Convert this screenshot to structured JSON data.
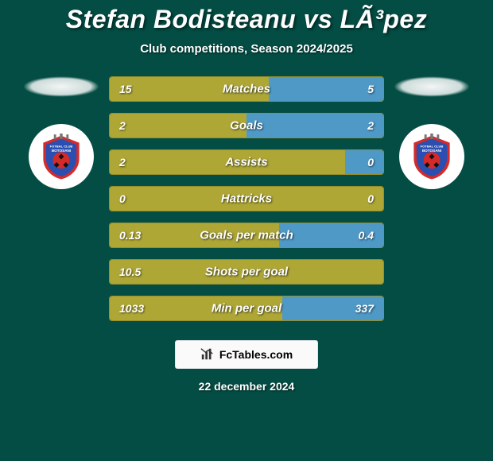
{
  "page": {
    "background": "#044d44",
    "accent_light": "#aea736",
    "border_color": "#968f2a",
    "bar_blue": "#4f99c6",
    "text_color": "#ffffff"
  },
  "title": "Stefan Bodisteanu vs LÃ³pez",
  "subtitle": "Club competitions, Season 2024/2025",
  "date": "22 december 2024",
  "branding": {
    "text": "FcTables.com"
  },
  "club_badge": {
    "shield_fill": "#2b4fb0",
    "shield_stroke": "#d42a2a",
    "ball_fill": "#d42a2a",
    "top_text": "FOTBAL CLUB",
    "name_text": "BOTOSANI"
  },
  "stats": [
    {
      "label": "Matches",
      "left_val": "15",
      "right_val": "5",
      "left_bar_pct": 58,
      "right_bar_pct": 42,
      "right_bar_blue": true
    },
    {
      "label": "Goals",
      "left_val": "2",
      "right_val": "2",
      "left_bar_pct": 50,
      "right_bar_pct": 50,
      "right_bar_blue": true
    },
    {
      "label": "Assists",
      "left_val": "2",
      "right_val": "0",
      "left_bar_pct": 86,
      "right_bar_pct": 14,
      "right_bar_blue": true
    },
    {
      "label": "Hattricks",
      "left_val": "0",
      "right_val": "0",
      "left_bar_pct": 100,
      "right_bar_pct": 0,
      "right_bar_blue": false
    },
    {
      "label": "Goals per match",
      "left_val": "0.13",
      "right_val": "0.4",
      "left_bar_pct": 62,
      "right_bar_pct": 38,
      "right_bar_blue": true
    },
    {
      "label": "Shots per goal",
      "left_val": "10.5",
      "right_val": "",
      "left_bar_pct": 100,
      "right_bar_pct": 0,
      "right_bar_blue": false
    },
    {
      "label": "Min per goal",
      "left_val": "1033",
      "right_val": "337",
      "left_bar_pct": 63,
      "right_bar_pct": 37,
      "right_bar_blue": true
    }
  ]
}
